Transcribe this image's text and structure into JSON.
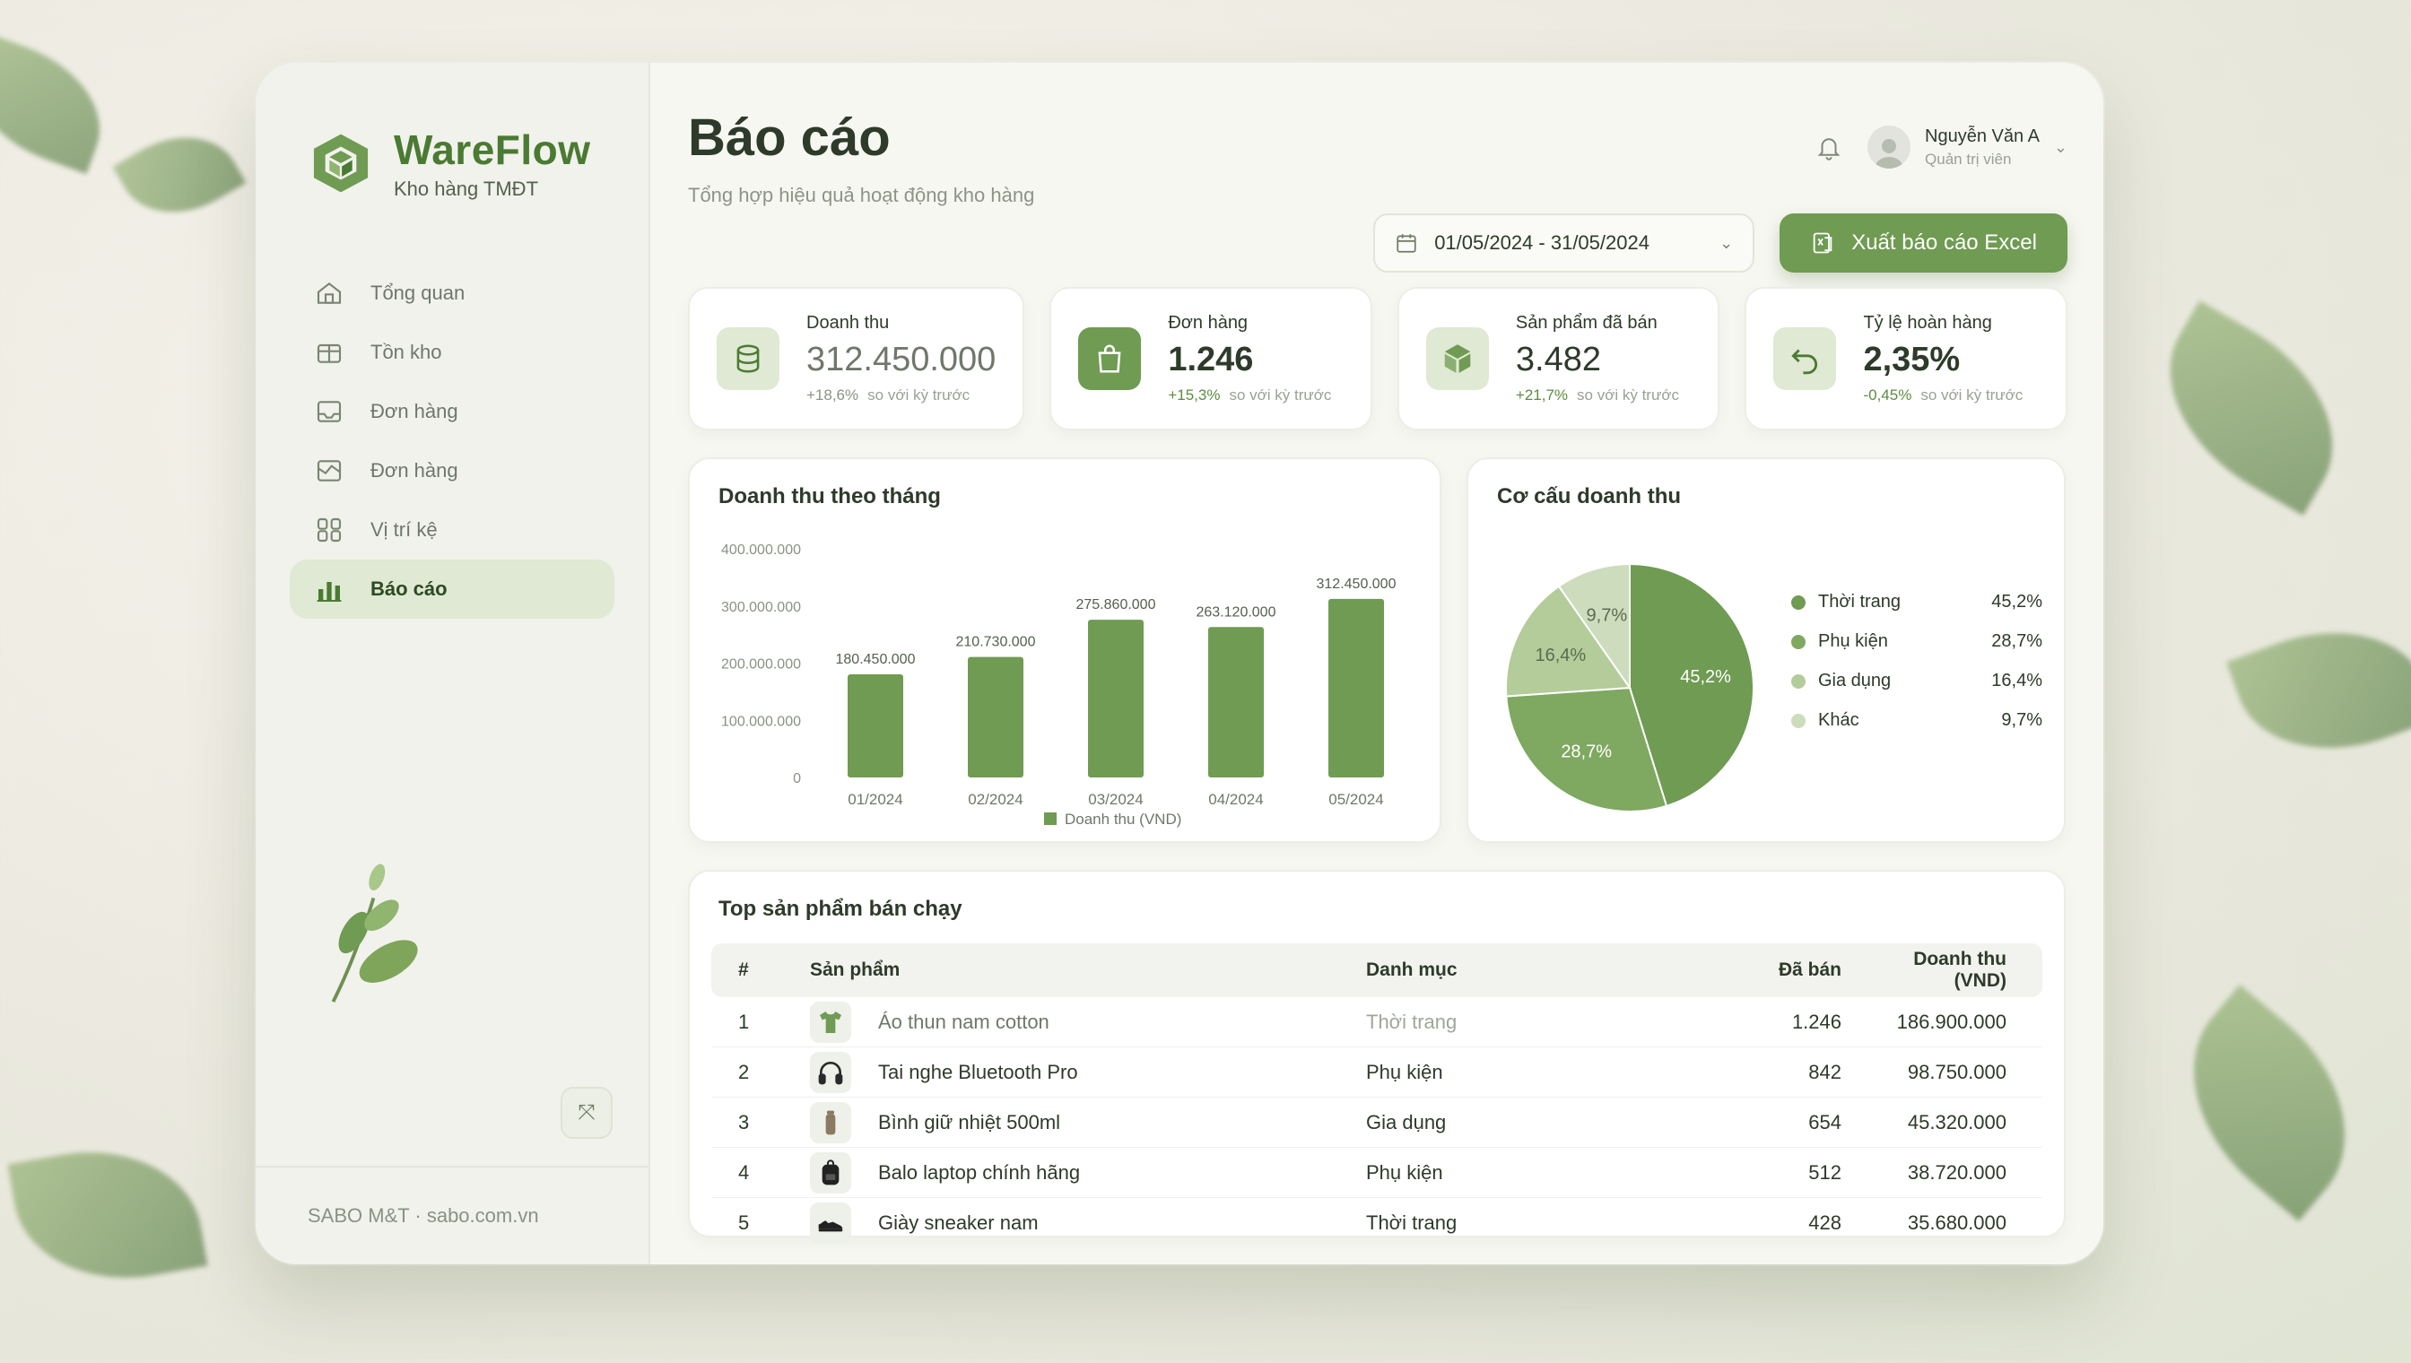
{
  "app": {
    "name": "WareFlow",
    "subtitle": "Kho hàng TMĐT"
  },
  "sidebar": {
    "items": [
      {
        "label": "Tổng quan",
        "icon": "home-icon",
        "active": false
      },
      {
        "label": "Tồn kho",
        "icon": "box-icon",
        "active": false
      },
      {
        "label": "Đơn hàng",
        "icon": "inbox-icon",
        "active": false
      },
      {
        "label": "Đơn hàng",
        "icon": "map-icon",
        "active": false
      },
      {
        "label": "Vị trí kệ",
        "icon": "grid-icon",
        "active": false
      },
      {
        "label": "Báo cáo",
        "icon": "bar-chart-icon",
        "active": true
      }
    ],
    "collapse_icon": "collapse-icon",
    "footer": "SABO M&T · sabo.com.vn"
  },
  "header": {
    "title": "Báo cáo",
    "subtitle": "Tổng hợp hiệu quả hoạt động kho hàng",
    "user": {
      "name": "Nguyễn Văn A",
      "role": "Quản trị viên"
    },
    "date_range": "01/05/2024 - 31/05/2024",
    "export_label": "Xuất báo cáo Excel"
  },
  "kpis": [
    {
      "label": "Doanh thu",
      "value": "312.450.000",
      "delta": "+18,6%",
      "compare": "so với kỳ trước",
      "icon": "database-icon"
    },
    {
      "label": "Đơn hàng",
      "value": "1.246",
      "delta": "+15,3%",
      "compare": "so với kỳ trước",
      "icon": "shopping-bag-icon"
    },
    {
      "label": "Sản phẩm đã bán",
      "value": "3.482",
      "delta": "+21,7%",
      "compare": "so với kỳ trước",
      "icon": "package-icon"
    },
    {
      "label": "Tỷ lệ hoàn hàng",
      "value": "2,35%",
      "delta": "-0,45%",
      "compare": "so với kỳ trước",
      "icon": "return-icon"
    }
  ],
  "colors": {
    "accent": "#6f9b52",
    "dark_green": "#4b7a33",
    "pie": [
      "#6f9b52",
      "#7fa860",
      "#b3cc9a",
      "#cddcbd"
    ]
  },
  "chart_data": [
    {
      "type": "bar",
      "title": "Doanh thu theo tháng",
      "categories": [
        "01/2024",
        "02/2024",
        "03/2024",
        "04/2024",
        "05/2024"
      ],
      "series": [
        {
          "name": "Doanh thu (VND)",
          "values": [
            180450000,
            210730000,
            275860000,
            263120000,
            312450000
          ]
        }
      ],
      "data_labels": [
        "180.450.000",
        "210.730.000",
        "275.860.000",
        "263.120.000",
        "312.450.000"
      ],
      "y_ticks": [
        "0",
        "100.000.000",
        "200.000.000",
        "300.000.000",
        "400.000.000"
      ],
      "ylim": [
        0,
        400000000
      ],
      "legend": "bottom",
      "grid": false
    },
    {
      "type": "pie",
      "title": "Cơ cấu doanh thu",
      "categories": [
        "Thời trang",
        "Phụ kiện",
        "Gia dụng",
        "Khác"
      ],
      "values": [
        45.2,
        28.7,
        16.4,
        9.7
      ],
      "labels": [
        "45,2%",
        "28,7%",
        "16,4%",
        "9,7%"
      ],
      "legend": "right"
    }
  ],
  "table": {
    "title": "Top sản phẩm bán chạy",
    "columns": [
      "#",
      "Sản phẩm",
      "Danh mục",
      "Đã bán",
      "Doanh thu (VND)"
    ],
    "rows": [
      {
        "rank": "1",
        "product": "Áo thun nam cotton",
        "category": "Thời trang",
        "sold": "1.246",
        "revenue": "186.900.000",
        "thumb": "tshirt-icon"
      },
      {
        "rank": "2",
        "product": "Tai nghe Bluetooth Pro",
        "category": "Phụ kiện",
        "sold": "842",
        "revenue": "98.750.000",
        "thumb": "headphones-icon"
      },
      {
        "rank": "3",
        "product": "Bình giữ nhiệt 500ml",
        "category": "Gia dụng",
        "sold": "654",
        "revenue": "45.320.000",
        "thumb": "bottle-icon"
      },
      {
        "rank": "4",
        "product": "Balo laptop chính hãng",
        "category": "Phụ kiện",
        "sold": "512",
        "revenue": "38.720.000",
        "thumb": "backpack-icon"
      },
      {
        "rank": "5",
        "product": "Giày sneaker nam",
        "category": "Thời trang",
        "sold": "428",
        "revenue": "35.680.000",
        "thumb": "sneaker-icon"
      }
    ]
  }
}
